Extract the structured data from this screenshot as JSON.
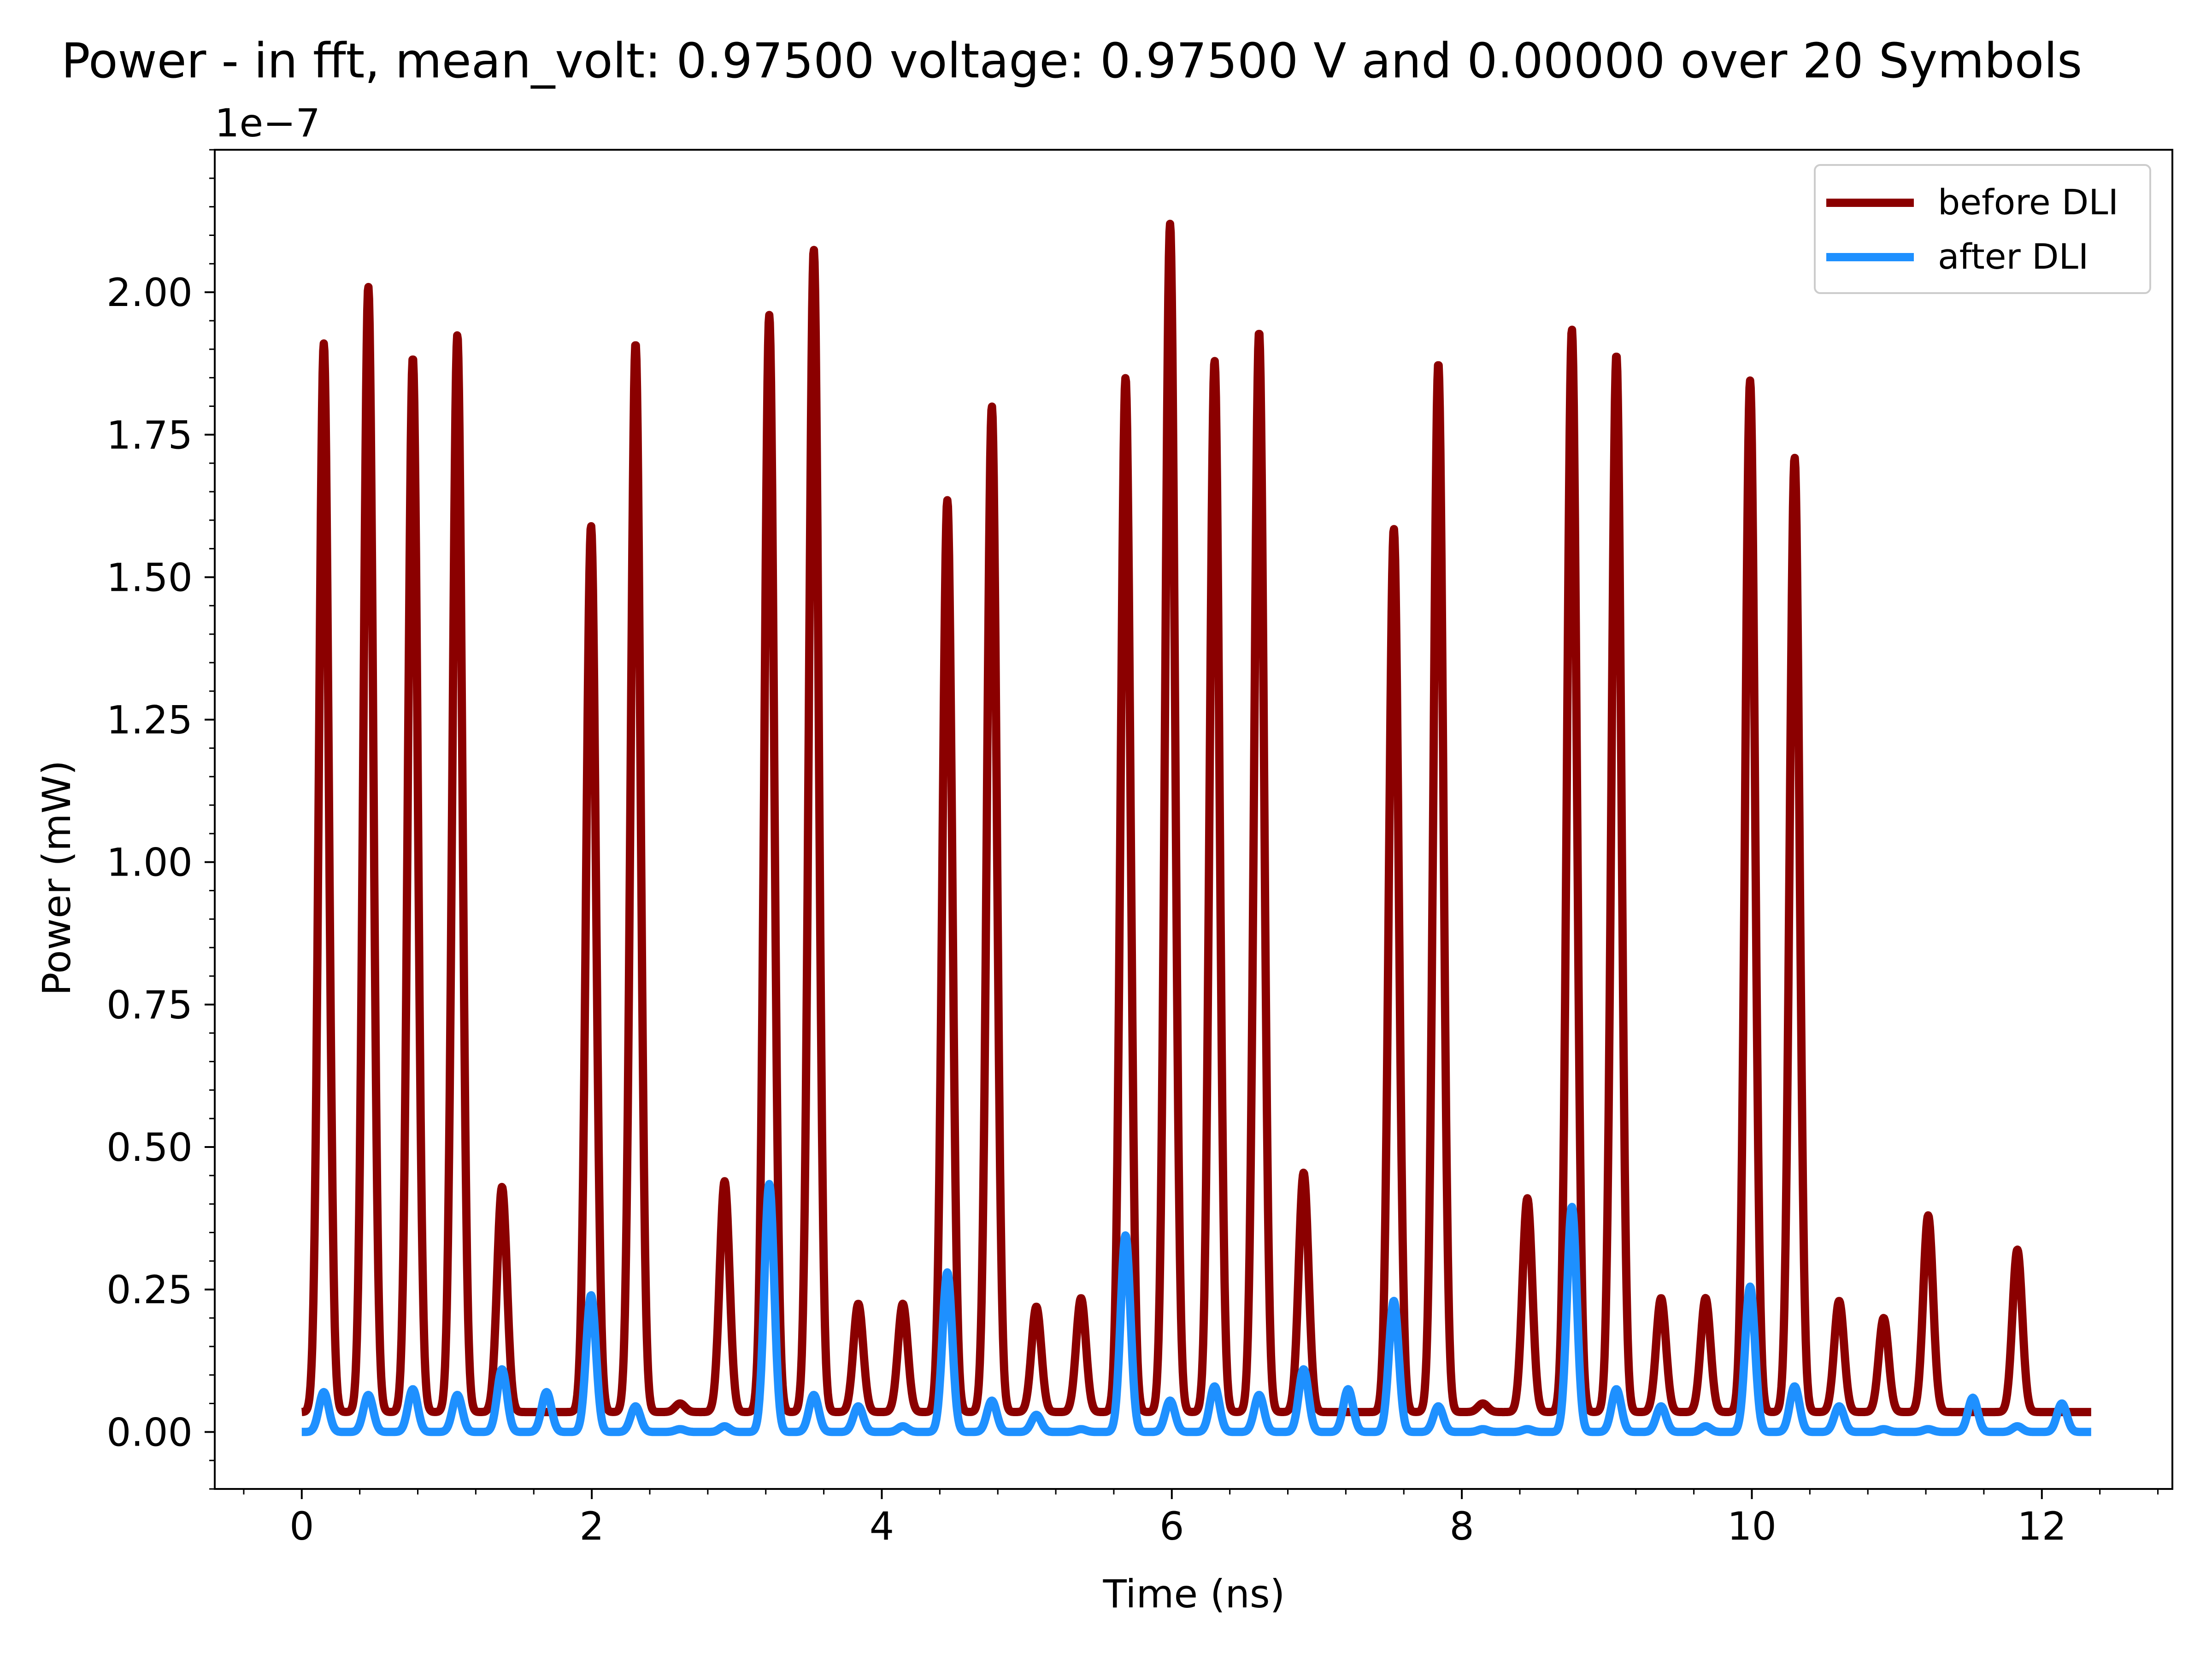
{
  "chart_data": {
    "type": "line",
    "title": "Power - in fft, mean_volt: 0.97500 voltage: 0.97500 V and 0.00000 over 20 Symbols",
    "xlabel": "Time (ns)",
    "ylabel": "Power (mW)",
    "y_offset_text": "1e−7",
    "xlim": [
      -0.6,
      12.9
    ],
    "ylim": [
      -0.1,
      2.25
    ],
    "x_ticks": [
      0,
      2,
      4,
      6,
      8,
      10,
      12
    ],
    "x_tick_labels": [
      "0",
      "2",
      "4",
      "6",
      "8",
      "10",
      "12"
    ],
    "y_ticks": [
      0.0,
      0.25,
      0.5,
      0.75,
      1.0,
      1.25,
      1.5,
      1.75,
      2.0
    ],
    "y_tick_labels": [
      "0.00",
      "0.25",
      "0.50",
      "0.75",
      "1.00",
      "1.25",
      "1.50",
      "1.75",
      "2.00"
    ],
    "x_minor_step": 0.4,
    "y_minor_step": 0.05,
    "grid": false,
    "legend_position": "top-right",
    "symbol_period_ns": 0.307,
    "series": [
      {
        "name": "before DLI",
        "color": "#8b0000",
        "baseline": 0.035,
        "peak_times_ns": [
          0.152,
          0.459,
          0.766,
          1.073,
          1.381,
          1.995,
          2.302,
          2.609,
          2.916,
          3.224,
          3.531,
          3.838,
          4.145,
          4.452,
          4.759,
          5.066,
          5.374,
          5.681,
          5.988,
          6.295,
          6.602,
          6.909,
          7.531,
          7.838,
          8.145,
          8.452,
          8.759,
          9.066,
          9.374,
          9.681,
          9.988,
          10.295,
          10.602,
          10.909,
          11.216,
          11.831
        ],
        "peak_values": [
          1.91,
          2.01,
          1.885,
          1.925,
          0.43,
          1.59,
          1.91,
          0.05,
          0.44,
          1.96,
          2.075,
          0.225,
          0.225,
          1.635,
          1.8,
          0.22,
          0.235,
          1.85,
          2.12,
          1.88,
          1.93,
          0.455,
          1.585,
          1.875,
          0.05,
          0.41,
          1.935,
          1.89,
          0.235,
          0.235,
          1.845,
          1.71,
          0.23,
          0.2,
          0.38,
          0.32
        ]
      },
      {
        "name": "after DLI",
        "color": "#1e90ff",
        "baseline": 0.0,
        "peak_times_ns": [
          0.152,
          0.459,
          0.766,
          1.073,
          1.381,
          1.688,
          1.995,
          2.302,
          2.609,
          2.916,
          3.224,
          3.531,
          3.838,
          4.145,
          4.452,
          4.759,
          5.066,
          5.374,
          5.681,
          5.988,
          6.295,
          6.602,
          6.909,
          7.216,
          7.531,
          7.838,
          8.145,
          8.452,
          8.759,
          9.066,
          9.374,
          9.681,
          9.988,
          10.295,
          10.602,
          10.909,
          11.216,
          11.524,
          11.831,
          12.138
        ],
        "peak_values": [
          0.07,
          0.065,
          0.075,
          0.065,
          0.11,
          0.07,
          0.24,
          0.045,
          0.005,
          0.01,
          0.435,
          0.065,
          0.045,
          0.01,
          0.28,
          0.055,
          0.03,
          0.005,
          0.345,
          0.055,
          0.08,
          0.065,
          0.11,
          0.075,
          0.23,
          0.045,
          0.005,
          0.005,
          0.395,
          0.075,
          0.045,
          0.01,
          0.255,
          0.08,
          0.045,
          0.005,
          0.005,
          0.06,
          0.01,
          0.05
        ]
      }
    ]
  }
}
